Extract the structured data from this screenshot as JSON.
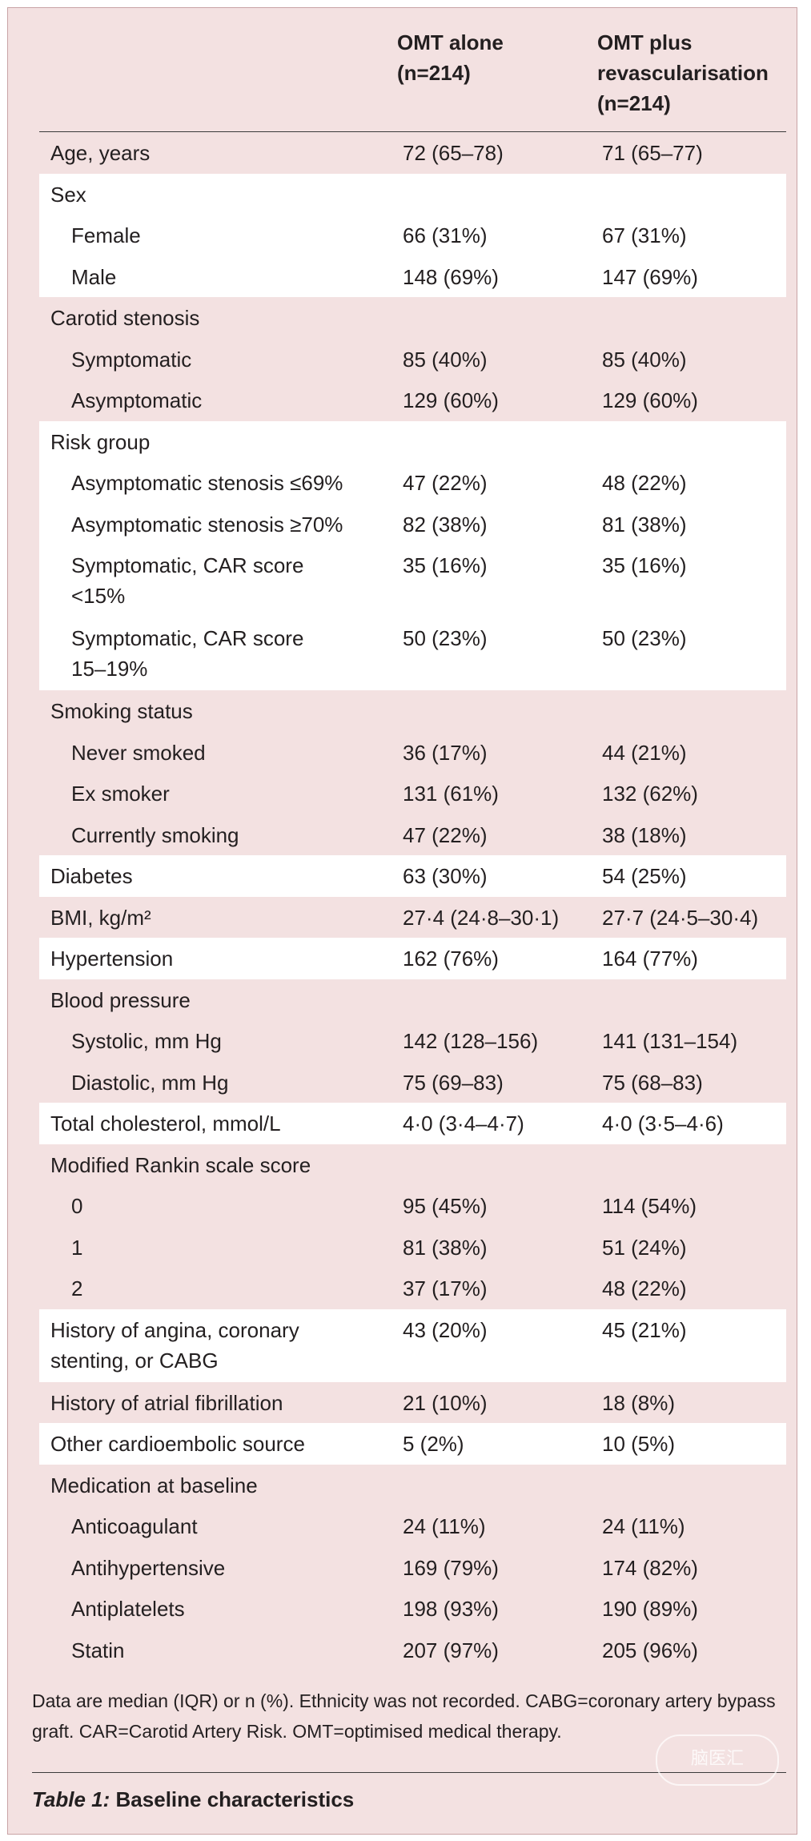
{
  "table": {
    "headers": [
      "",
      "OMT alone\n(n=214)",
      "OMT plus revascularisation (n=214)"
    ],
    "header_col1_line1": "OMT alone",
    "header_col1_line2": "(n=214)",
    "header_col2_line1": "OMT plus",
    "header_col2_line2": "revascularisation",
    "header_col2_line3": "(n=214)",
    "rows": [
      {
        "label": "Age, years",
        "v1": "72 (65–78)",
        "v2": "71 (65–77)",
        "indent": false,
        "band": false
      },
      {
        "label": "Sex",
        "v1": "",
        "v2": "",
        "indent": false,
        "band": true
      },
      {
        "label": "Female",
        "v1": "66 (31%)",
        "v2": "67 (31%)",
        "indent": true,
        "band": true
      },
      {
        "label": "Male",
        "v1": "148 (69%)",
        "v2": "147 (69%)",
        "indent": true,
        "band": true
      },
      {
        "label": "Carotid stenosis",
        "v1": "",
        "v2": "",
        "indent": false,
        "band": false
      },
      {
        "label": "Symptomatic",
        "v1": "85 (40%)",
        "v2": "85 (40%)",
        "indent": true,
        "band": false
      },
      {
        "label": "Asymptomatic",
        "v1": "129 (60%)",
        "v2": "129 (60%)",
        "indent": true,
        "band": false
      },
      {
        "label": "Risk group",
        "v1": "",
        "v2": "",
        "indent": false,
        "band": true
      },
      {
        "label": "Asymptomatic stenosis ≤69%",
        "v1": "47 (22%)",
        "v2": "48 (22%)",
        "indent": true,
        "band": true
      },
      {
        "label": "Asymptomatic stenosis ≥70%",
        "v1": "82 (38%)",
        "v2": "81 (38%)",
        "indent": true,
        "band": true
      },
      {
        "label": "Symptomatic, CAR score <15%",
        "v1": "35 (16%)",
        "v2": "35 (16%)",
        "indent": true,
        "band": true,
        "tall": true
      },
      {
        "label": "Symptomatic, CAR score 15–19%",
        "v1": "50 (23%)",
        "v2": "50 (23%)",
        "indent": true,
        "band": true,
        "tall": true
      },
      {
        "label": "Smoking status",
        "v1": "",
        "v2": "",
        "indent": false,
        "band": false
      },
      {
        "label": "Never smoked",
        "v1": "36 (17%)",
        "v2": "44 (21%)",
        "indent": true,
        "band": false
      },
      {
        "label": "Ex smoker",
        "v1": "131 (61%)",
        "v2": "132 (62%)",
        "indent": true,
        "band": false
      },
      {
        "label": "Currently smoking",
        "v1": "47 (22%)",
        "v2": "38 (18%)",
        "indent": true,
        "band": false
      },
      {
        "label": "Diabetes",
        "v1": "63 (30%)",
        "v2": "54 (25%)",
        "indent": false,
        "band": true
      },
      {
        "label": "BMI, kg/m²",
        "v1": "27·4 (24·8–30·1)",
        "v2": "27·7 (24·5–30·4)",
        "indent": false,
        "band": false
      },
      {
        "label": "Hypertension",
        "v1": "162 (76%)",
        "v2": "164 (77%)",
        "indent": false,
        "band": true
      },
      {
        "label": "Blood pressure",
        "v1": "",
        "v2": "",
        "indent": false,
        "band": false
      },
      {
        "label": "Systolic, mm Hg",
        "v1": "142 (128–156)",
        "v2": "141 (131–154)",
        "indent": true,
        "band": false
      },
      {
        "label": "Diastolic, mm Hg",
        "v1": "75 (69–83)",
        "v2": "75 (68–83)",
        "indent": true,
        "band": false
      },
      {
        "label": "Total cholesterol, mmol/L",
        "v1": "4·0 (3·4–4·7)",
        "v2": "4·0 (3·5–4·6)",
        "indent": false,
        "band": true
      },
      {
        "label": "Modified Rankin scale score",
        "v1": "",
        "v2": "",
        "indent": false,
        "band": false
      },
      {
        "label": "0",
        "v1": "95 (45%)",
        "v2": "114 (54%)",
        "indent": true,
        "band": false
      },
      {
        "label": "1",
        "v1": "81 (38%)",
        "v2": "51 (24%)",
        "indent": true,
        "band": false
      },
      {
        "label": "2",
        "v1": "37 (17%)",
        "v2": "48 (22%)",
        "indent": true,
        "band": false
      },
      {
        "label": "History of angina, coronary stenting, or CABG",
        "v1": "43 (20%)",
        "v2": "45 (21%)",
        "indent": false,
        "band": true,
        "tall": true
      },
      {
        "label": "History of atrial fibrillation",
        "v1": "21 (10%)",
        "v2": "18 (8%)",
        "indent": false,
        "band": false
      },
      {
        "label": "Other cardioembolic source",
        "v1": "5 (2%)",
        "v2": "10 (5%)",
        "indent": false,
        "band": true
      },
      {
        "label": "Medication at baseline",
        "v1": "",
        "v2": "",
        "indent": false,
        "band": false
      },
      {
        "label": "Anticoagulant",
        "v1": "24 (11%)",
        "v2": "24 (11%)",
        "indent": true,
        "band": false
      },
      {
        "label": "Antihypertensive",
        "v1": "169 (79%)",
        "v2": "174 (82%)",
        "indent": true,
        "band": false
      },
      {
        "label": "Antiplatelets",
        "v1": "198 (93%)",
        "v2": "190 (89%)",
        "indent": true,
        "band": false
      },
      {
        "label": "Statin",
        "v1": "207 (97%)",
        "v2": "205 (96%)",
        "indent": true,
        "band": false
      }
    ]
  },
  "footnote": "Data are median (IQR) or n (%). Ethnicity was not recorded. CABG=coronary artery bypass graft. CAR=Carotid Artery Risk. OMT=optimised medical therapy.",
  "caption": {
    "number": "Table 1:",
    "title": "Baseline characteristics"
  },
  "watermark": "脑医汇"
}
